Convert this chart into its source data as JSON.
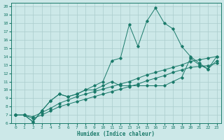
{
  "xlabel": "Humidex (Indice chaleur)",
  "bg_color": "#cce8e8",
  "grid_color": "#aacccc",
  "line_color": "#1a7a6a",
  "xlim": [
    -0.5,
    23.5
  ],
  "ylim": [
    6,
    20.4
  ],
  "yticks": [
    6,
    7,
    8,
    9,
    10,
    11,
    12,
    13,
    14,
    15,
    16,
    17,
    18,
    19,
    20
  ],
  "xticks": [
    0,
    1,
    2,
    3,
    4,
    5,
    6,
    7,
    8,
    9,
    10,
    11,
    12,
    13,
    14,
    15,
    16,
    17,
    18,
    19,
    20,
    21,
    22,
    23
  ],
  "line1_x": [
    0,
    1,
    2,
    3,
    4,
    5,
    6,
    7,
    8,
    9,
    10,
    11,
    12,
    13,
    14,
    15,
    16,
    17,
    18,
    19,
    20,
    21,
    22,
    23
  ],
  "line1_y": [
    7.0,
    7.0,
    6.2,
    7.5,
    8.7,
    9.5,
    9.2,
    9.5,
    10.0,
    10.5,
    11.0,
    13.5,
    13.8,
    17.8,
    15.2,
    18.2,
    19.8,
    18.0,
    17.3,
    15.2,
    14.0,
    13.2,
    12.5,
    14.0
  ],
  "line2_x": [
    0,
    1,
    2,
    3,
    4,
    5,
    6,
    7,
    8,
    9,
    10,
    11,
    12,
    13,
    14,
    15,
    16,
    17,
    18,
    19,
    20,
    21,
    22,
    23
  ],
  "line2_y": [
    7.0,
    7.0,
    6.2,
    7.5,
    8.7,
    9.5,
    9.2,
    9.5,
    10.0,
    10.0,
    10.5,
    11.0,
    10.5,
    10.5,
    10.5,
    10.5,
    10.5,
    10.5,
    11.0,
    11.5,
    13.8,
    13.0,
    12.5,
    13.5
  ],
  "line3_x": [
    0,
    1,
    2,
    3,
    4,
    5,
    6,
    7,
    8,
    9,
    10,
    11,
    12,
    13,
    14,
    15,
    16,
    17,
    18,
    19,
    20,
    21,
    22,
    23
  ],
  "line3_y": [
    7.0,
    7.0,
    6.8,
    7.3,
    7.8,
    8.4,
    8.8,
    9.2,
    9.5,
    9.8,
    10.1,
    10.4,
    10.7,
    11.0,
    11.4,
    11.8,
    12.1,
    12.4,
    12.7,
    13.0,
    13.4,
    13.6,
    13.8,
    14.0
  ],
  "line4_x": [
    0,
    1,
    2,
    3,
    4,
    5,
    6,
    7,
    8,
    9,
    10,
    11,
    12,
    13,
    14,
    15,
    16,
    17,
    18,
    19,
    20,
    21,
    22,
    23
  ],
  "line4_y": [
    7.0,
    7.0,
    6.6,
    7.0,
    7.5,
    8.0,
    8.3,
    8.6,
    8.9,
    9.2,
    9.5,
    9.8,
    10.1,
    10.4,
    10.7,
    11.1,
    11.4,
    11.7,
    12.1,
    12.4,
    12.7,
    12.8,
    12.9,
    13.2
  ]
}
